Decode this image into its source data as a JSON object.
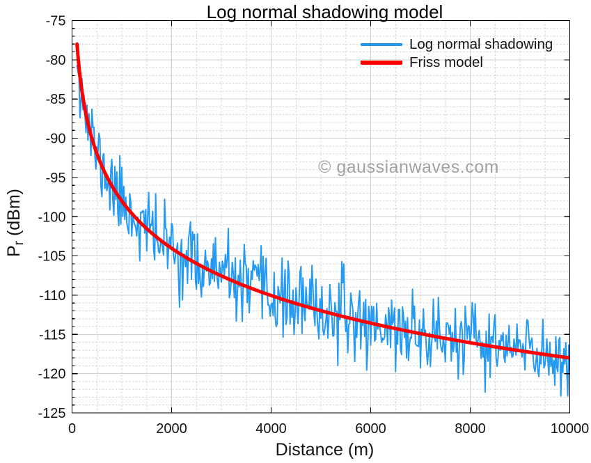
{
  "figure": {
    "title": "Log normal shadowing model",
    "xlabel": "Distance (m)",
    "ylabel": {
      "main": "P",
      "sub": "r",
      "unit": " (dBm)"
    },
    "watermark": "© gaussianwaves.com"
  },
  "legend": {
    "entries": [
      {
        "label": "Log normal shadowing",
        "color": "#259af3"
      },
      {
        "label": "Friss model",
        "color": "#ff0000"
      }
    ]
  },
  "chart_data": {
    "type": "line",
    "title": "Log normal shadowing model",
    "xlabel": "Distance (m)",
    "ylabel": "Pr (dBm)",
    "xlim": [
      0,
      10000
    ],
    "ylim": [
      -125,
      -75
    ],
    "xticks": [
      0,
      2000,
      4000,
      6000,
      8000,
      10000
    ],
    "yticks": [
      -125,
      -120,
      -115,
      -110,
      -105,
      -100,
      -95,
      -90,
      -85,
      -80,
      -75
    ],
    "x_minor_step": 500,
    "y_minor_step": 1,
    "grid": {
      "major": true,
      "minor": true,
      "major_color": "#cfcfcf",
      "minor_color": "#d6d6d6"
    },
    "legend_position": "inside-top-right",
    "series": [
      {
        "name": "Log normal shadowing",
        "color": "#259af3",
        "line_width": 2,
        "model": "log-normal-shadowing",
        "d0_m": 100,
        "pr_at_d0_dBm": -78,
        "path_loss_exponent": 2,
        "shadowing_sigma_dB": 2.4,
        "x_start_m": 100,
        "x_end_m": 10000,
        "x_step_m": 20,
        "seed": 11
      },
      {
        "name": "Friss model",
        "color": "#ff0000",
        "line_width": 5,
        "model": "friss",
        "d0_m": 100,
        "pr_at_d0_dBm": -78,
        "path_loss_exponent": 2,
        "x_start_m": 100,
        "x_end_m": 10000,
        "x_step_m": 20
      }
    ],
    "reference_points": {
      "distance_m": [
        100,
        500,
        1000,
        2000,
        3000,
        4000,
        5000,
        6000,
        7000,
        8000,
        9000,
        10000
      ],
      "friss_pr_dBm": [
        -78,
        -92,
        -98,
        -104,
        -107.5,
        -110,
        -112,
        -113.6,
        -114.9,
        -116.1,
        -117.1,
        -118
      ]
    }
  }
}
